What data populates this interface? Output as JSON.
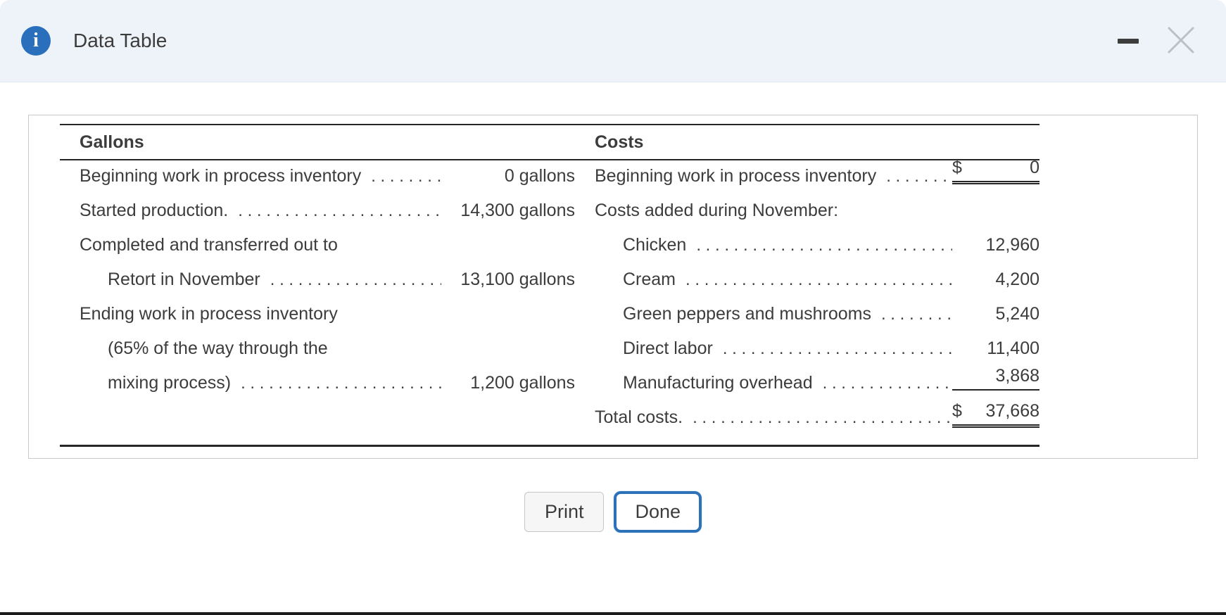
{
  "window": {
    "title": "Data Table"
  },
  "icons": {
    "info_glyph": "i"
  },
  "colors": {
    "accent_blue": "#2a6fbb",
    "titlebar_bg": "#eef3f9",
    "done_border": "#2d72b9",
    "table_rule": "#262626"
  },
  "leader_dots": ". . . . . . . . . . . . . . . . . . . . . . . . . . . . . . . . . . . . . . . . . . . . . . . . . . . . . . . . . . . .",
  "table": {
    "gallons": {
      "header": "Gallons",
      "rows": [
        {
          "label": "Beginning work in process inventory",
          "dots": true,
          "value": "0 gallons"
        },
        {
          "label": "Started production.",
          "dots": true,
          "value": "14,300 gallons"
        },
        {
          "label": "Completed and transferred out to"
        },
        {
          "label": "Retort in November",
          "dots": true,
          "value": "13,100 gallons",
          "indent": 1
        },
        {
          "label": "Ending work in process inventory"
        },
        {
          "label": "(65% of the way through the",
          "indent": 1
        },
        {
          "label": "mixing process)",
          "dots": true,
          "value": "1,200 gallons",
          "indent": 1
        }
      ]
    },
    "costs": {
      "header": "Costs",
      "rows": [
        {
          "label": "Beginning work in process inventory",
          "dots": true,
          "currency": "$",
          "value": "0",
          "rule": "double"
        },
        {
          "label": "Costs added during November:"
        },
        {
          "label": "Chicken",
          "dots": true,
          "value": "12,960",
          "indent": 1
        },
        {
          "label": "Cream",
          "dots": true,
          "value": "4,200",
          "indent": 1
        },
        {
          "label": "Green peppers and mushrooms",
          "dots": true,
          "value": "5,240",
          "indent": 1
        },
        {
          "label": "Direct labor",
          "dots": true,
          "value": "11,400",
          "indent": 1
        },
        {
          "label": "Manufacturing overhead",
          "dots": true,
          "value": "3,868",
          "indent": 1,
          "rule": "single"
        },
        {
          "label": "Total costs.",
          "dots": true,
          "currency": "$",
          "value": "37,668",
          "rule": "double"
        }
      ]
    }
  },
  "buttons": {
    "print": "Print",
    "done": "Done"
  }
}
